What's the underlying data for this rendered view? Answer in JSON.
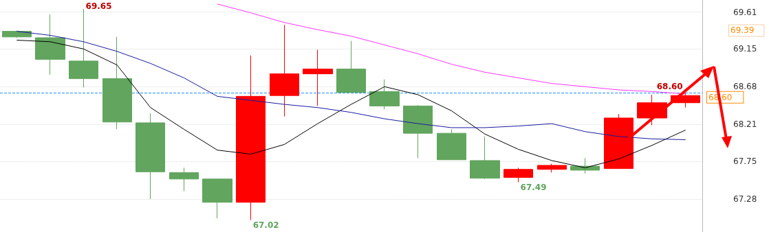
{
  "chart_data": {
    "type": "candlestick",
    "categories": [
      null,
      null,
      null,
      null,
      null,
      null,
      null,
      null,
      null,
      null,
      null,
      null,
      null,
      null,
      null,
      null,
      null,
      null,
      null,
      null,
      null
    ],
    "ohlc": [
      [
        69.37,
        69.38,
        69.29,
        69.3
      ],
      [
        69.29,
        69.58,
        68.83,
        69.02
      ],
      [
        69.0,
        69.65,
        68.67,
        68.78
      ],
      [
        68.78,
        69.3,
        68.15,
        68.24
      ],
      [
        68.23,
        68.35,
        67.28,
        67.62
      ],
      [
        67.61,
        67.67,
        67.38,
        67.53
      ],
      [
        67.53,
        67.53,
        67.04,
        67.24
      ],
      [
        67.24,
        69.07,
        67.02,
        68.56
      ],
      [
        68.57,
        69.45,
        68.31,
        68.84
      ],
      [
        68.84,
        69.14,
        68.44,
        68.9
      ],
      [
        68.9,
        69.25,
        68.6,
        68.61
      ],
      [
        68.62,
        68.77,
        68.4,
        68.44
      ],
      [
        68.44,
        68.45,
        67.79,
        68.1
      ],
      [
        68.1,
        68.15,
        67.77,
        67.77
      ],
      [
        67.76,
        68.06,
        67.53,
        67.54
      ],
      [
        67.55,
        67.67,
        67.49,
        67.65
      ],
      [
        67.65,
        67.72,
        67.61,
        67.7
      ],
      [
        67.69,
        67.79,
        67.6,
        67.64
      ],
      [
        67.66,
        68.34,
        67.66,
        68.29
      ],
      [
        68.29,
        68.58,
        68.2,
        68.48
      ],
      [
        68.48,
        68.6,
        68.42,
        68.57
      ]
    ],
    "colors": [
      "#62a55e",
      "#62a55e",
      "#62a55e",
      "#62a55e",
      "#62a55e",
      "#62a55e",
      "#62a55e",
      "#ff0000",
      "#ff0000",
      "#ff0000",
      "#62a55e",
      "#62a55e",
      "#62a55e",
      "#62a55e",
      "#62a55e",
      "#ff0000",
      "#ff0000",
      "#62a55e",
      "#ff0000",
      "#ff0000",
      "#ff0000"
    ],
    "series": [
      {
        "type": "line",
        "color": "#000000",
        "values": [
          69.26,
          69.24,
          69.15,
          68.95,
          68.42,
          68.15,
          67.89,
          67.84,
          67.96,
          68.22,
          68.46,
          68.68,
          68.58,
          68.38,
          68.09,
          67.9,
          67.76,
          67.67,
          67.78,
          67.95,
          68.14
        ]
      },
      {
        "type": "line",
        "color": "#1a1aa0",
        "values": [
          69.37,
          69.32,
          69.24,
          69.12,
          68.97,
          68.79,
          68.56,
          68.51,
          68.46,
          68.42,
          68.36,
          68.28,
          68.22,
          68.17,
          68.17,
          68.19,
          68.22,
          68.12,
          68.06,
          68.03,
          68.02
        ]
      },
      {
        "type": "line",
        "color": "#ff33ff",
        "values": [
          null,
          null,
          null,
          null,
          null,
          null,
          69.71,
          69.6,
          69.48,
          69.39,
          69.31,
          69.2,
          69.09,
          68.96,
          68.86,
          68.79,
          68.72,
          68.68,
          68.64,
          68.62,
          68.59
        ]
      }
    ],
    "ylim": [
      66.87,
      69.76
    ],
    "yticks": [
      67.28,
      67.75,
      68.21,
      68.68,
      69.15,
      69.61
    ],
    "grid": "y",
    "marker": "none",
    "ref_lines": [
      {
        "axis": "y",
        "value": 68.6,
        "label": "68.60",
        "color": "#1e90ff",
        "line_style": "dashed"
      }
    ],
    "value_labels": [
      null,
      null,
      "69.65",
      null,
      null,
      null,
      null,
      "67.02",
      null,
      null,
      null,
      null,
      null,
      null,
      null,
      "67.49",
      null,
      null,
      null,
      null,
      "68.60"
    ],
    "annotations": [
      "69.39"
    ]
  }
}
